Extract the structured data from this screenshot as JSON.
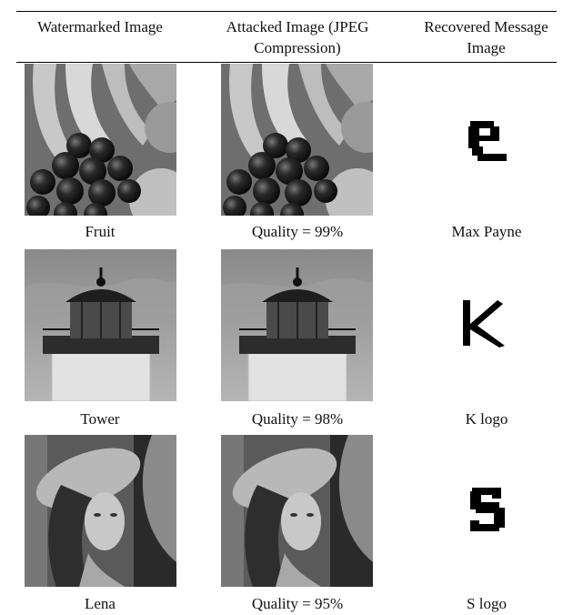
{
  "table": {
    "header": [
      "Watermarked Image",
      "Attacked Image (JPEG Compression)",
      "Recovered Message Image"
    ],
    "rows": [
      [
        "Fruit",
        "Quality = 99%",
        "Max Payne"
      ],
      [
        "Tower",
        "Quality = 98%",
        "K logo"
      ],
      [
        "Lena",
        "Quality = 95%",
        "S logo"
      ]
    ]
  }
}
